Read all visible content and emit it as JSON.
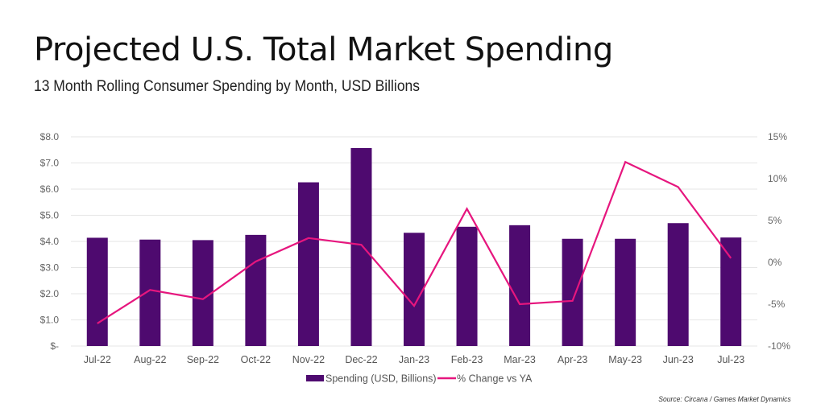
{
  "chart_data": {
    "type": "bar+line",
    "title": "Projected U.S. Total Market Spending",
    "subtitle": "13 Month Rolling Consumer Spending by Month, USD Billions",
    "categories": [
      "Jul-22",
      "Aug-22",
      "Sep-22",
      "Oct-22",
      "Nov-22",
      "Dec-22",
      "Jan-23",
      "Feb-23",
      "Mar-23",
      "Apr-23",
      "May-23",
      "Jun-23",
      "Jul-23"
    ],
    "series": [
      {
        "name": "Spending (USD, Billions)",
        "type": "bar",
        "axis": "left",
        "color": "#4e0a6f",
        "values": [
          4.14,
          4.07,
          4.05,
          4.25,
          6.26,
          7.57,
          4.33,
          4.56,
          4.62,
          4.1,
          4.1,
          4.7,
          4.15
        ]
      },
      {
        "name": "% Change vs YA",
        "type": "line",
        "axis": "right",
        "color": "#e6167e",
        "values": [
          -7.3,
          -3.3,
          -4.4,
          0.1,
          2.9,
          2.1,
          -5.2,
          6.4,
          -5.0,
          -4.6,
          12.0,
          9.0,
          0.5
        ]
      }
    ],
    "left_axis": {
      "range": [
        0,
        8
      ],
      "ticks": [
        0,
        1,
        2,
        3,
        4,
        5,
        6,
        7,
        8
      ],
      "tick_labels": [
        "$-",
        "$1.0",
        "$2.0",
        "$3.0",
        "$4.0",
        "$5.0",
        "$6.0",
        "$7.0",
        "$8.0"
      ]
    },
    "right_axis": {
      "range": [
        -10,
        15
      ],
      "ticks": [
        -10,
        -5,
        0,
        5,
        10,
        15
      ],
      "tick_labels": [
        "-10%",
        "-5%",
        "0%",
        "5%",
        "10%",
        "15%"
      ]
    },
    "grid": true,
    "legend": {
      "placement": "bottom-center",
      "entries": [
        "Spending (USD, Billions)",
        "% Change vs YA"
      ]
    },
    "xlabel": "",
    "ylabel": "",
    "source": "Source: Circana / Games Market Dynamics"
  }
}
